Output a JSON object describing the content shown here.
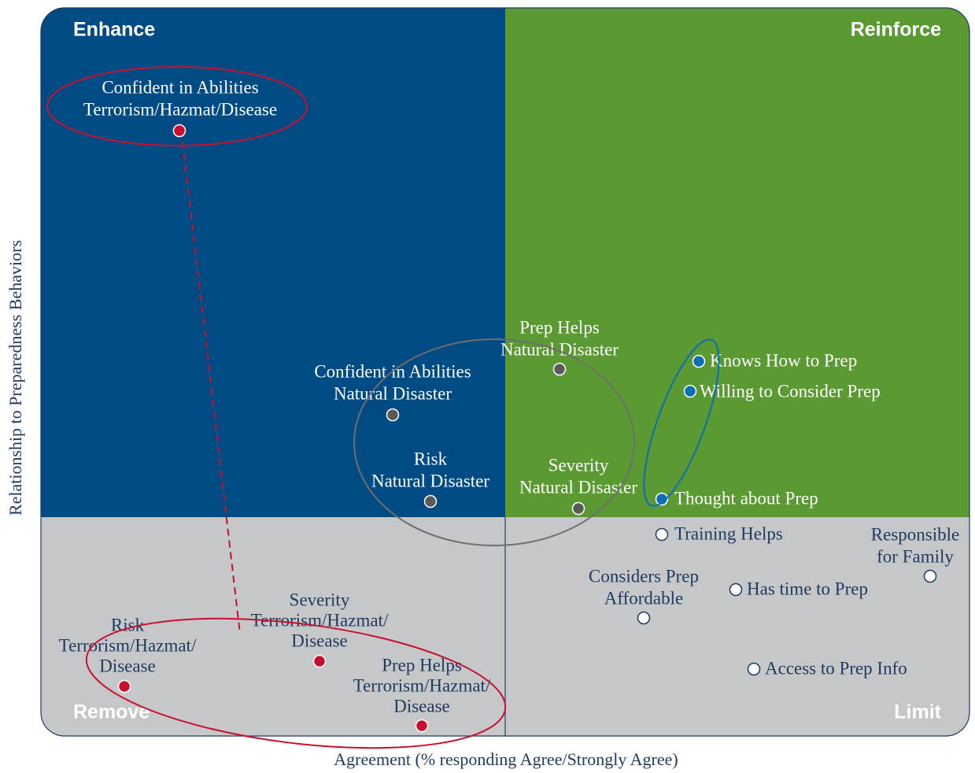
{
  "quadrants": {
    "top_left": "Enhance",
    "top_right": "Reinforce",
    "bottom_left": "Remove",
    "bottom_right": "Limit"
  },
  "x_axis_label": "Agreement (% responding Agree/Strongly Agree)",
  "y_axis_label": "Relationship to Preparedness Behaviors",
  "points": [
    {
      "label": [
        "Confident in Abilities",
        "Terrorism/Hazmat/Disease"
      ],
      "color": "#c8102e"
    },
    {
      "label": [
        "Confident in Abilities",
        "Natural Disaster"
      ],
      "color": "#5a5a5a"
    },
    {
      "label": [
        "Risk",
        "Natural Disaster"
      ],
      "color": "#5a5a5a"
    },
    {
      "label": [
        "Prep Helps",
        "Natural Disaster"
      ],
      "color": "#5a5a5a"
    },
    {
      "label": [
        "Severity",
        "Natural Disaster"
      ],
      "color": "#5a5a5a"
    },
    {
      "label": [
        "Knows How to Prep"
      ],
      "color": "#0a6fb5"
    },
    {
      "label": [
        "Willing to Consider Prep"
      ],
      "color": "#0a6fb5"
    },
    {
      "label": [
        "Thought about Prep"
      ],
      "color": "#0a6fb5"
    },
    {
      "label": [
        "Training Helps"
      ],
      "color": "#ffffff"
    },
    {
      "label": [
        "Responsible",
        "for Family"
      ],
      "color": "#ffffff"
    },
    {
      "label": [
        "Considers Prep",
        "Affordable"
      ],
      "color": "#ffffff"
    },
    {
      "label": [
        "Has time to Prep"
      ],
      "color": "#ffffff"
    },
    {
      "label": [
        "Access to Prep Info"
      ],
      "color": "#ffffff"
    },
    {
      "label": [
        "Risk",
        "Terrorism/Hazmat/",
        "Disease"
      ],
      "color": "#c8102e"
    },
    {
      "label": [
        "Severity",
        "Terrorism/Hazmat/",
        "Disease"
      ],
      "color": "#c8102e"
    },
    {
      "label": [
        "Prep Helps",
        "Terrorism/Hazmat/",
        "Disease"
      ],
      "color": "#c8102e"
    }
  ]
}
